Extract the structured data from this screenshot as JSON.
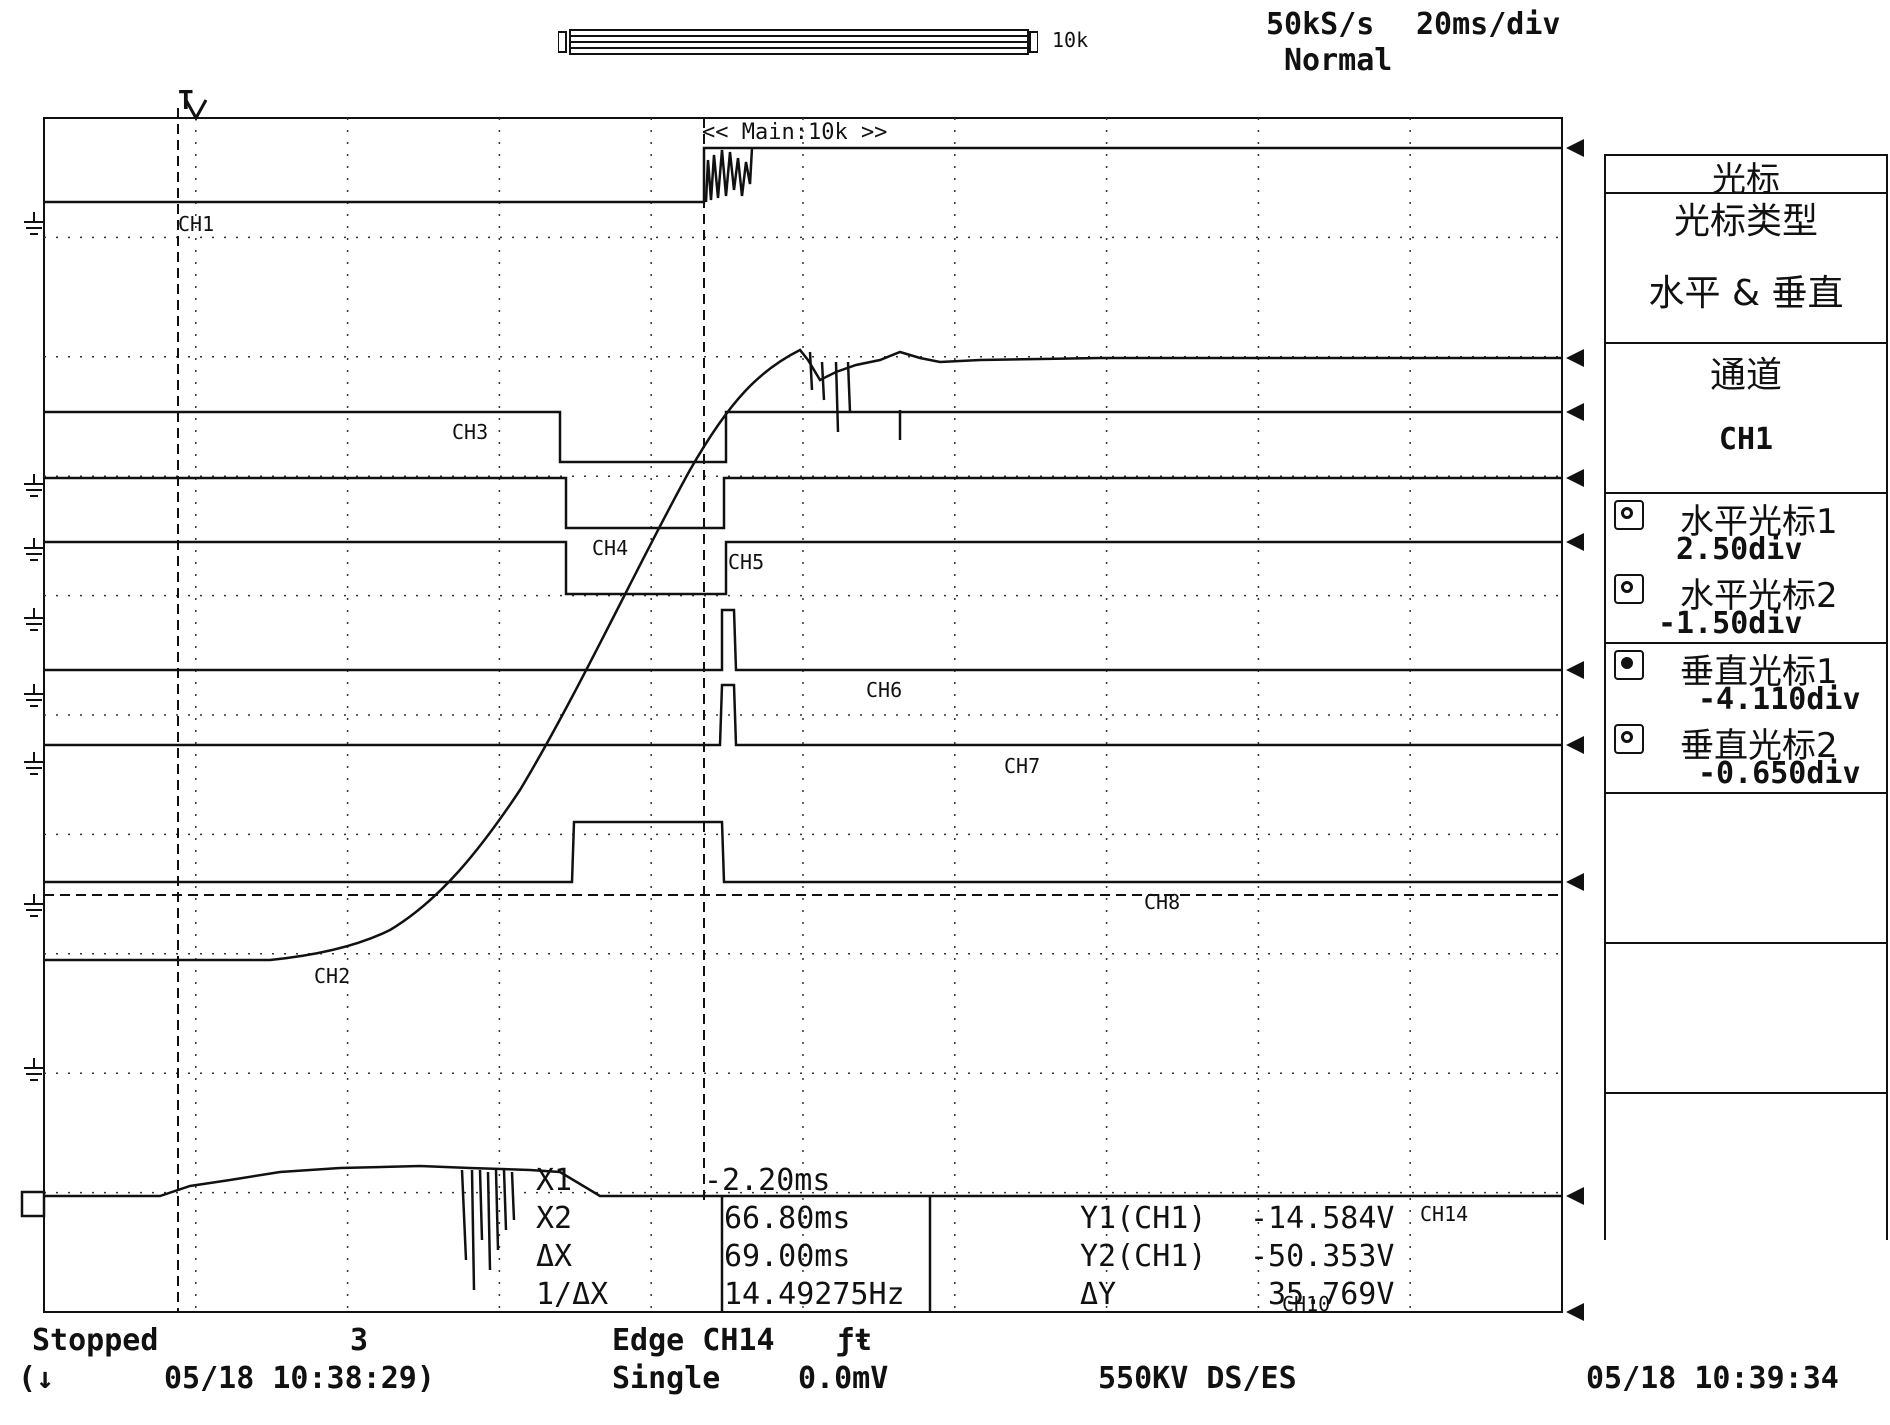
{
  "header": {
    "sample_rate": "50kS/s",
    "time_div": "20ms/div",
    "mode": "Normal",
    "record_length": "10k",
    "zoom_label": "<< Main:10k >>"
  },
  "trigger_marker": "T",
  "channel_labels": {
    "ch1": "CH1",
    "ch2": "CH2",
    "ch3": "CH3",
    "ch4": "CH4",
    "ch5": "CH5",
    "ch6": "CH6",
    "ch7": "CH7",
    "ch8": "CH8",
    "ch10": "CH10",
    "ch14": "CH14"
  },
  "cursor_panel": {
    "title": "光标",
    "type_label": "光标类型",
    "type_value": "水平 & 垂直",
    "channel_label": "通道",
    "channel_value": "CH1",
    "h_cursor1_label": "水平光标1",
    "h_cursor1_value": "2.50div",
    "h_cursor2_label": "水平光标2",
    "h_cursor2_value": "-1.50div",
    "v_cursor1_label": "垂直光标1",
    "v_cursor1_value": "-4.110div",
    "v_cursor2_label": "垂直光标2",
    "v_cursor2_value": "-0.650div"
  },
  "measurements": {
    "x1_label": "X1",
    "x1_value": "-2.20ms",
    "x2_label": "X2",
    "x2_value": "66.80ms",
    "dx_label": "ΔX",
    "dx_value": "69.00ms",
    "inv_dx_label": "1/ΔX",
    "inv_dx_value": "14.49275Hz",
    "y1_label": "Y1(CH1)",
    "y1_value": "-14.584V",
    "y2_label": "Y2(CH1)",
    "y2_value": "-50.353V",
    "dy_label": "ΔY",
    "dy_value": "35.769V"
  },
  "status": {
    "state": "Stopped",
    "count": "3",
    "trigger_type": "Edge CH14",
    "trigger_slope": "ƒŧ",
    "trigger_mode": "Single",
    "trigger_level": "0.0mV",
    "title": "550KV DS/ES",
    "start_time": "05/18 10:38:29)",
    "arrow": "(↓",
    "end_time": "05/18 10:39:34"
  }
}
